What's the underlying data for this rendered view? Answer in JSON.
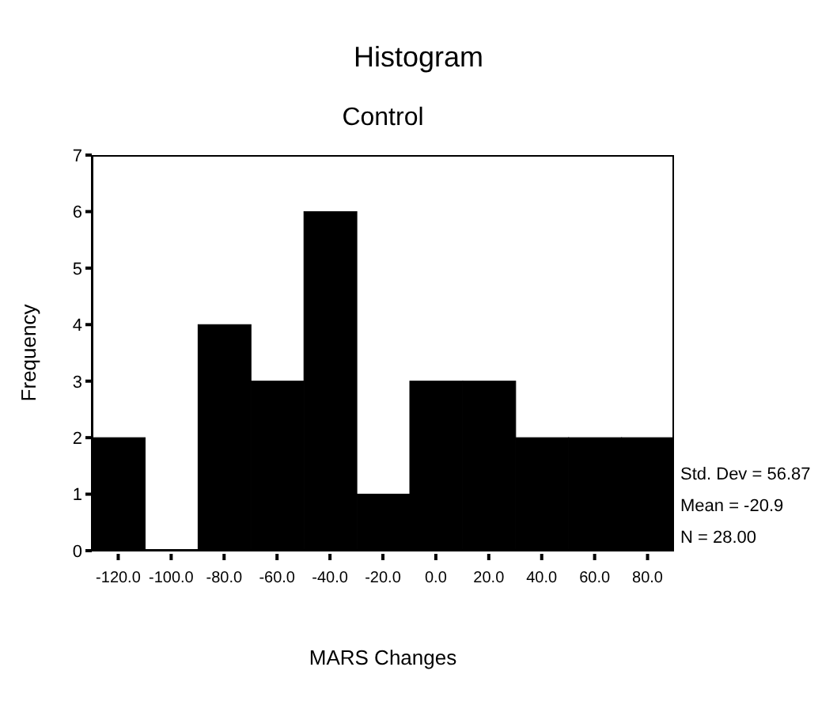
{
  "chart_data": {
    "type": "histogram",
    "title": "Histogram",
    "subtitle": "Control",
    "xlabel": "MARS Changes",
    "ylabel": "Frequency",
    "bins": [
      -130,
      -110,
      -90,
      -70,
      -50,
      -30,
      -10,
      10,
      30,
      50,
      70,
      90
    ],
    "values": [
      2,
      0,
      4,
      3,
      6,
      1,
      3,
      3,
      2,
      2,
      2
    ],
    "color": "#000000",
    "xlim": [
      -130,
      90
    ],
    "xticks": [
      {
        "value": -120,
        "label": "-120.0"
      },
      {
        "value": -100,
        "label": "-100.0"
      },
      {
        "value": -80,
        "label": "-80.0"
      },
      {
        "value": -60,
        "label": "-60.0"
      },
      {
        "value": -40,
        "label": "-40.0"
      },
      {
        "value": -20,
        "label": "-20.0"
      },
      {
        "value": 0,
        "label": "0.0"
      },
      {
        "value": 20,
        "label": "20.0"
      },
      {
        "value": 40,
        "label": "40.0"
      },
      {
        "value": 60,
        "label": "60.0"
      },
      {
        "value": 80,
        "label": "80.0"
      }
    ],
    "ylim": [
      0,
      7
    ],
    "yticks": [
      0,
      1,
      2,
      3,
      4,
      5,
      6,
      7
    ],
    "annotations": [
      "Std. Dev = 56.87",
      "Mean = -20.9",
      "N = 28.00"
    ]
  }
}
